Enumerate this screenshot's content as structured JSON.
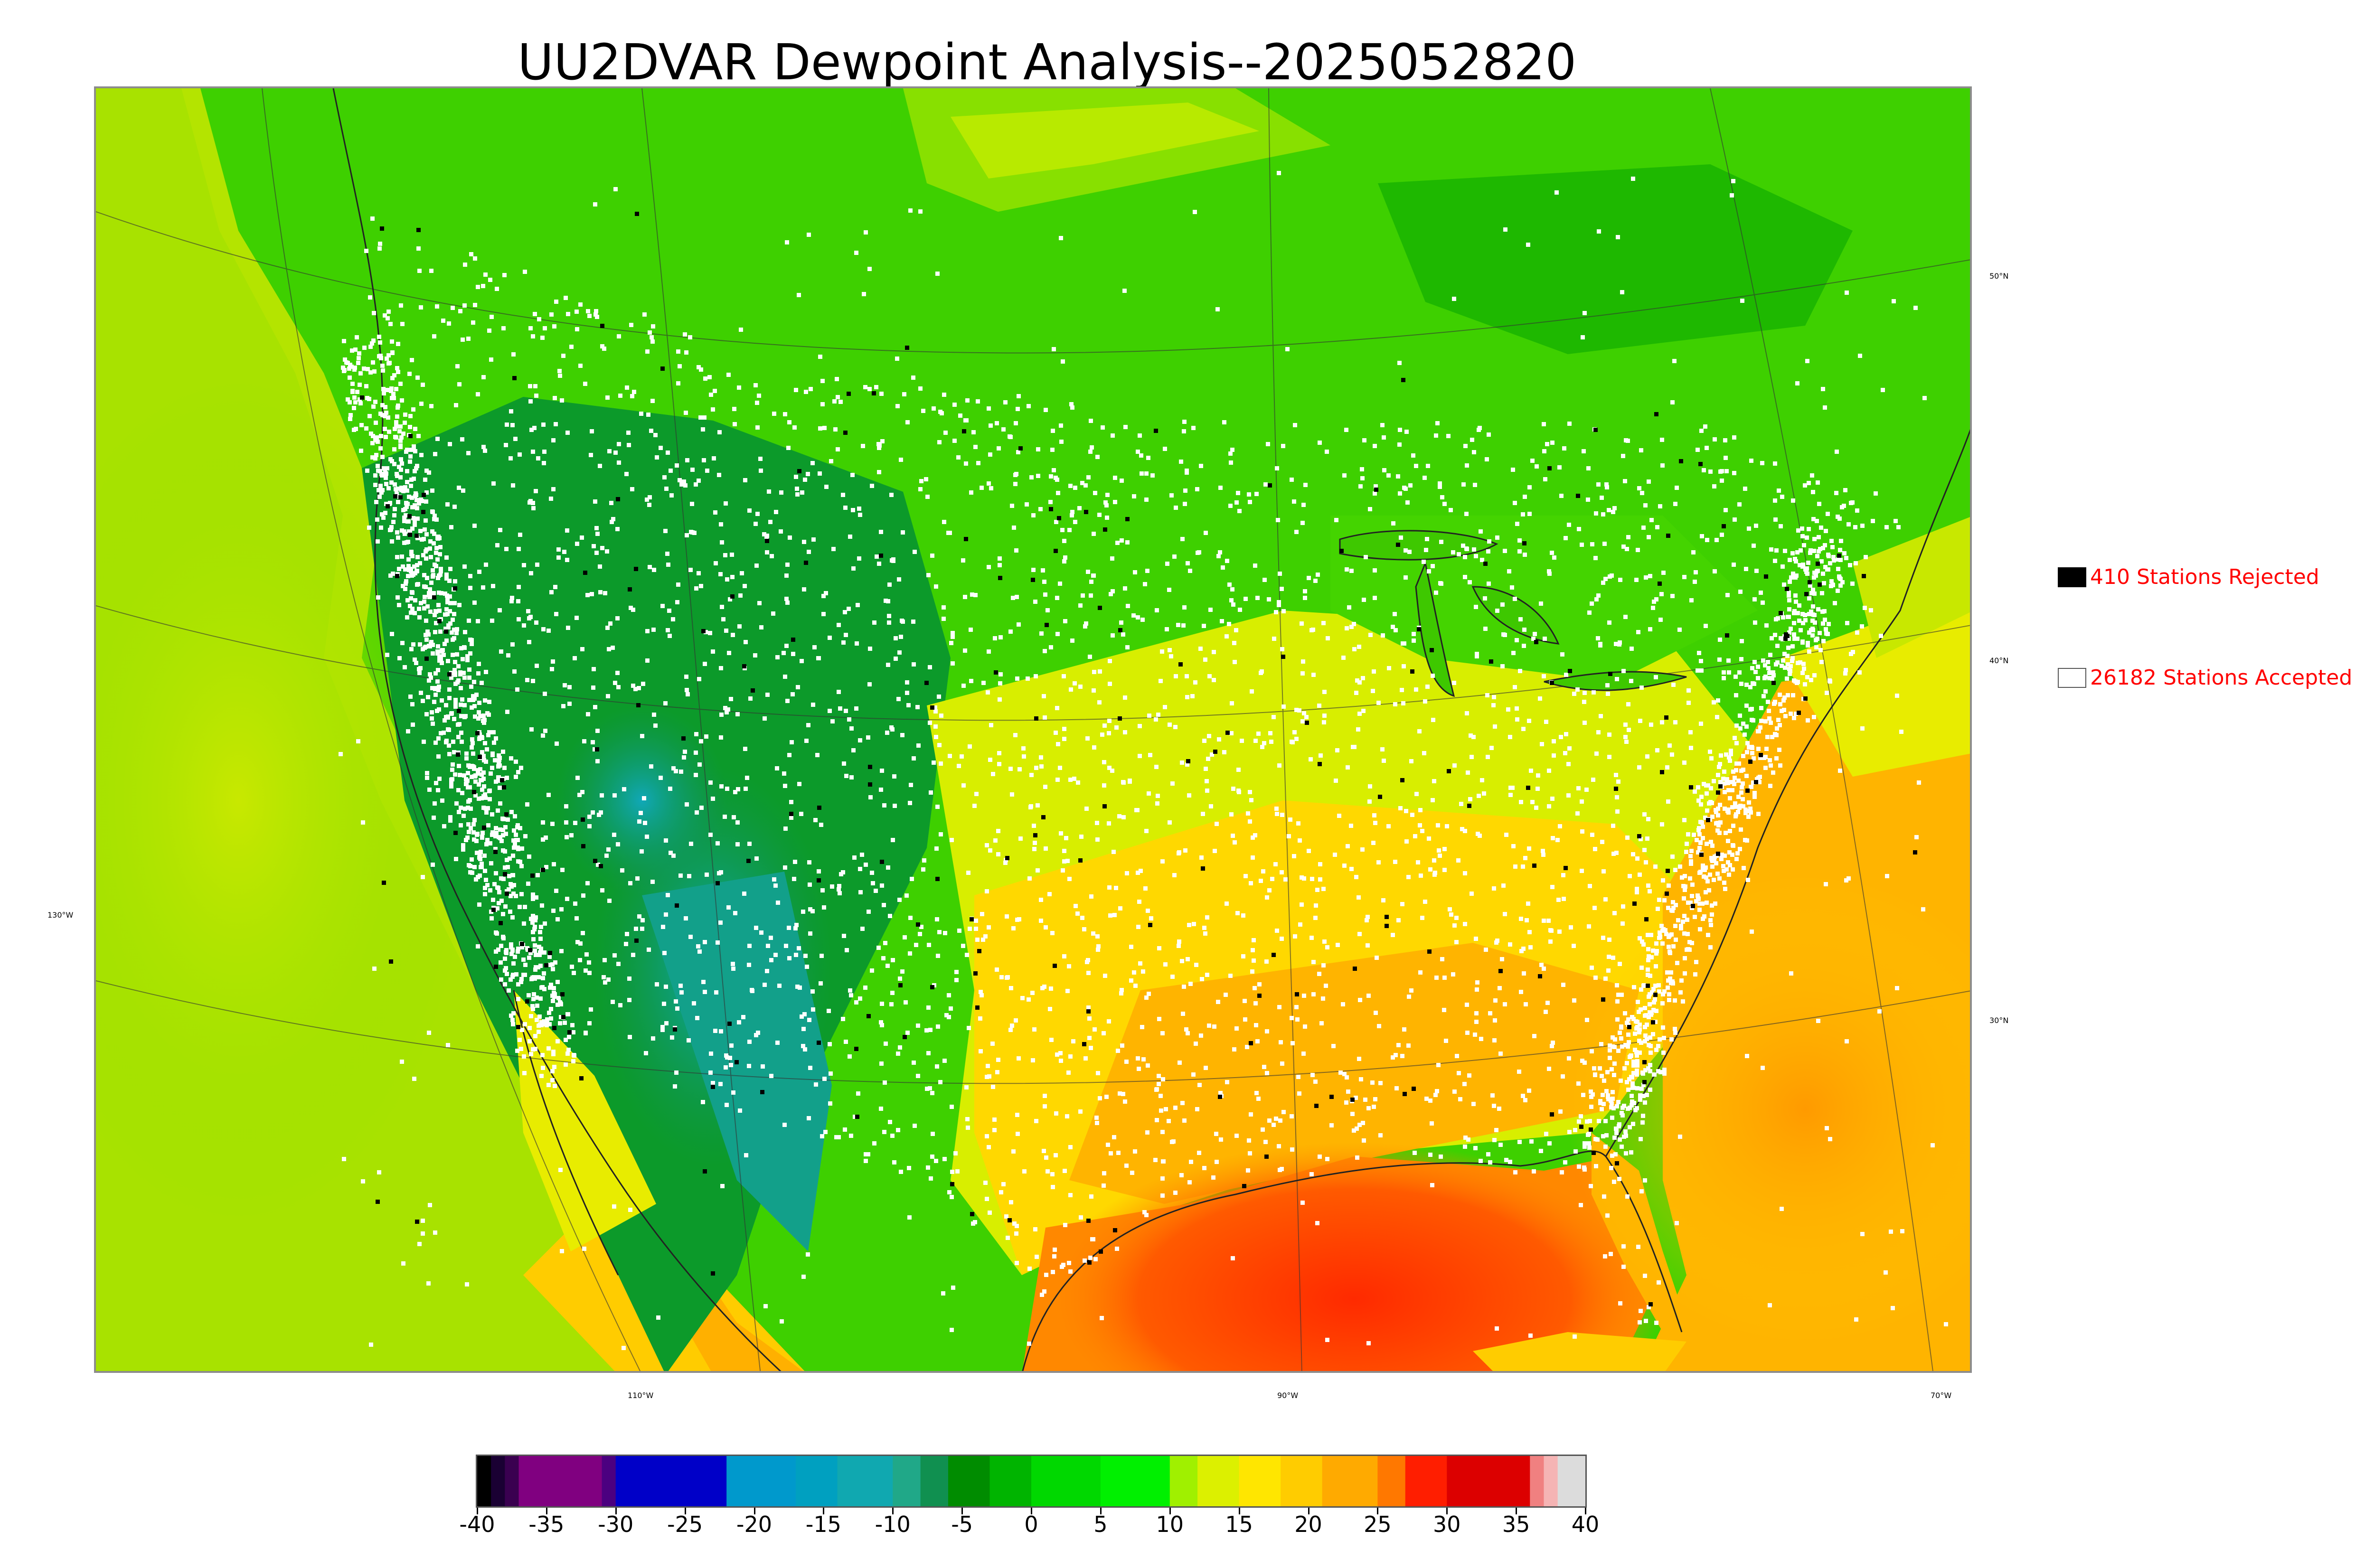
{
  "title": "UU2DVAR Dewpoint Analysis--2025052820",
  "legend": {
    "rejected": {
      "label": "410 Stations Rejected",
      "box_color": "#000000"
    },
    "accepted": {
      "label": "26182 Stations Accepted",
      "box_color": "#ffffff"
    }
  },
  "map": {
    "lat_labels": [
      "50°N",
      "40°N",
      "30°N"
    ],
    "lon_labels": [
      "130°W",
      "110°W",
      "90°W",
      "70°W"
    ]
  },
  "colorbar": {
    "min": -40,
    "max": 40,
    "tick_labels": [
      "-40",
      "-35",
      "-30",
      "-25",
      "-20",
      "-15",
      "-10",
      "-5",
      "0",
      "5",
      "10",
      "15",
      "20",
      "25",
      "30",
      "35",
      "40"
    ],
    "tick_values": [
      -40,
      -35,
      -30,
      -25,
      -20,
      -15,
      -10,
      -5,
      0,
      5,
      10,
      15,
      20,
      25,
      30,
      35,
      40
    ],
    "bands": [
      {
        "from": -40,
        "to": -39,
        "color": "#000000"
      },
      {
        "from": -39,
        "to": -38,
        "color": "#1a0033"
      },
      {
        "from": -38,
        "to": -37,
        "color": "#3a0050"
      },
      {
        "from": -37,
        "to": -31,
        "color": "#800080"
      },
      {
        "from": -31,
        "to": -30,
        "color": "#4b0080"
      },
      {
        "from": -30,
        "to": -22,
        "color": "#0000c8"
      },
      {
        "from": -22,
        "to": -17,
        "color": "#0099cc"
      },
      {
        "from": -17,
        "to": -14,
        "color": "#00a0c0"
      },
      {
        "from": -14,
        "to": -10,
        "color": "#10a8b0"
      },
      {
        "from": -10,
        "to": -8,
        "color": "#20a888"
      },
      {
        "from": -8,
        "to": -6,
        "color": "#109050"
      },
      {
        "from": -6,
        "to": -3,
        "color": "#008c00"
      },
      {
        "from": -3,
        "to": 0,
        "color": "#00b400"
      },
      {
        "from": 0,
        "to": 5,
        "color": "#00d800"
      },
      {
        "from": 5,
        "to": 10,
        "color": "#00f000"
      },
      {
        "from": 10,
        "to": 12,
        "color": "#a0f000"
      },
      {
        "from": 12,
        "to": 15,
        "color": "#dcf000"
      },
      {
        "from": 15,
        "to": 18,
        "color": "#ffe600"
      },
      {
        "from": 18,
        "to": 21,
        "color": "#ffcc00"
      },
      {
        "from": 21,
        "to": 25,
        "color": "#ffaa00"
      },
      {
        "from": 25,
        "to": 27,
        "color": "#ff7800"
      },
      {
        "from": 27,
        "to": 30,
        "color": "#ff1e00"
      },
      {
        "from": 30,
        "to": 36,
        "color": "#dc0000"
      },
      {
        "from": 36,
        "to": 37,
        "color": "#f08080"
      },
      {
        "from": 37,
        "to": 38,
        "color": "#f5b4b4"
      },
      {
        "from": 38,
        "to": 40,
        "color": "#dcdcdc"
      }
    ]
  }
}
